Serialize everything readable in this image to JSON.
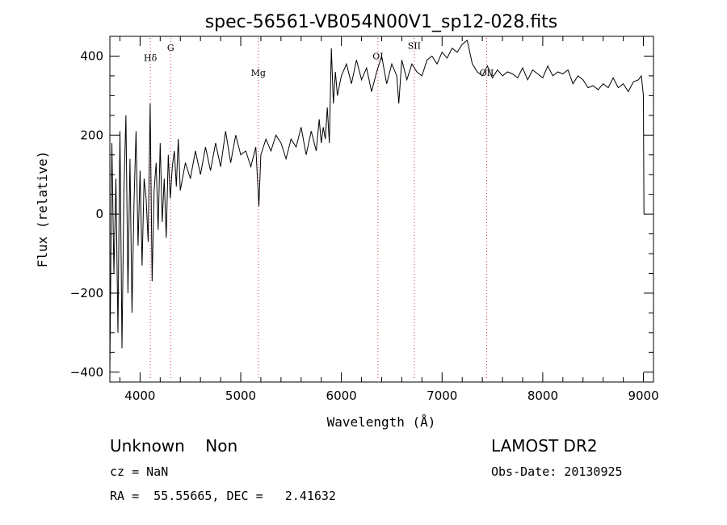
{
  "chart_data": {
    "type": "line",
    "title": "spec-56561-VB054N00V1_sp12-028.fits",
    "xlabel": "Wavelength (Å)",
    "ylabel": "Flux (relative)",
    "xlim": [
      3700,
      9100
    ],
    "ylim": [
      -425,
      450
    ],
    "xticks": [
      4000,
      5000,
      6000,
      7000,
      8000,
      9000
    ],
    "yticks": [
      -400,
      -200,
      0,
      200,
      400
    ],
    "xtick_labels": [
      "4000",
      "5000",
      "6000",
      "7000",
      "8000",
      "9000"
    ],
    "ytick_labels": [
      "−400",
      "−200",
      "0",
      "200",
      "400"
    ],
    "grid": false,
    "series": [
      {
        "color": "#000000",
        "x": [
          3700,
          3720,
          3740,
          3760,
          3780,
          3800,
          3820,
          3840,
          3860,
          3880,
          3900,
          3920,
          3940,
          3960,
          3980,
          4000,
          4020,
          4040,
          4060,
          4080,
          4100,
          4120,
          4140,
          4160,
          4180,
          4200,
          4220,
          4240,
          4260,
          4280,
          4300,
          4320,
          4340,
          4360,
          4380,
          4400,
          4450,
          4500,
          4550,
          4600,
          4650,
          4700,
          4750,
          4800,
          4850,
          4900,
          4950,
          5000,
          5050,
          5100,
          5150,
          5180,
          5200,
          5250,
          5300,
          5350,
          5400,
          5450,
          5500,
          5550,
          5600,
          5650,
          5700,
          5750,
          5780,
          5800,
          5820,
          5840,
          5860,
          5880,
          5900,
          5920,
          5940,
          5960,
          6000,
          6050,
          6100,
          6150,
          6200,
          6250,
          6300,
          6350,
          6400,
          6450,
          6500,
          6550,
          6570,
          6600,
          6650,
          6700,
          6750,
          6800,
          6850,
          6900,
          6950,
          7000,
          7050,
          7100,
          7150,
          7200,
          7250,
          7300,
          7350,
          7400,
          7450,
          7500,
          7550,
          7600,
          7650,
          7700,
          7750,
          7800,
          7850,
          7900,
          7950,
          8000,
          8050,
          8100,
          8150,
          8200,
          8250,
          8300,
          8350,
          8400,
          8450,
          8500,
          8550,
          8600,
          8650,
          8700,
          8750,
          8800,
          8850,
          8900,
          8950,
          8980,
          9000,
          9005
        ],
        "y": [
          -400,
          180,
          -150,
          90,
          -300,
          210,
          -340,
          60,
          250,
          -200,
          140,
          -250,
          30,
          210,
          -80,
          110,
          -130,
          90,
          40,
          -70,
          280,
          -170,
          60,
          130,
          -40,
          180,
          -20,
          90,
          -60,
          150,
          40,
          120,
          160,
          70,
          190,
          60,
          130,
          90,
          160,
          100,
          170,
          110,
          180,
          120,
          210,
          130,
          200,
          150,
          160,
          120,
          170,
          20,
          150,
          190,
          160,
          200,
          180,
          140,
          190,
          170,
          220,
          150,
          210,
          160,
          240,
          180,
          220,
          190,
          270,
          180,
          420,
          280,
          360,
          300,
          350,
          380,
          330,
          390,
          340,
          370,
          310,
          360,
          400,
          330,
          380,
          350,
          280,
          390,
          340,
          380,
          360,
          350,
          390,
          400,
          380,
          410,
          395,
          420,
          410,
          430,
          440,
          380,
          360,
          350,
          375,
          345,
          365,
          350,
          360,
          355,
          345,
          370,
          340,
          365,
          355,
          345,
          375,
          350,
          360,
          355,
          365,
          330,
          350,
          340,
          320,
          325,
          315,
          330,
          320,
          345,
          320,
          330,
          310,
          335,
          340,
          350,
          300,
          0
        ]
      }
    ],
    "annotations": [
      {
        "label": "Hδ",
        "x": 4102,
        "y": 388
      },
      {
        "label": "G",
        "x": 4304,
        "y": 413
      },
      {
        "label": "Mg",
        "x": 5175,
        "y": 350
      },
      {
        "label": "OI",
        "x": 6363,
        "y": 392
      },
      {
        "label": "SII",
        "x": 6724,
        "y": 418
      },
      {
        "label": "OII",
        "x": 7443,
        "y": 350
      }
    ]
  },
  "info": {
    "type_label": "Unknown    Non",
    "survey": "LAMOST DR2",
    "cz": "cz = NaN",
    "obs_date": "Obs-Date: 20130925",
    "coords": "RA =  55.55665, DEC =   2.41632"
  }
}
